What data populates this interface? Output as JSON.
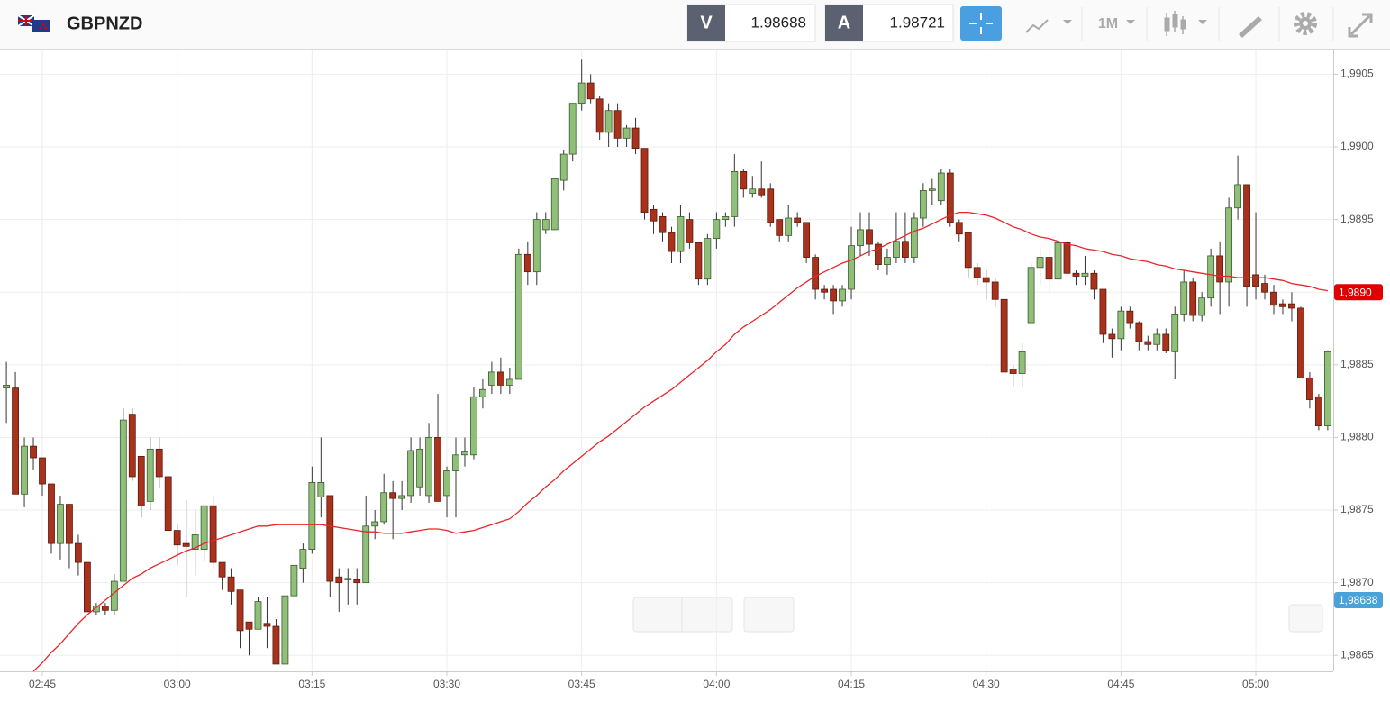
{
  "header": {
    "symbol": "GBPNZD",
    "bid_label": "V",
    "bid": "1.98688",
    "ask_label": "A",
    "ask": "1.98721",
    "timeframe": "1M"
  },
  "chart_data": {
    "type": "candlestick",
    "categories": [
      null,
      null,
      null,
      null,
      "02:45",
      null,
      null,
      null,
      null,
      null,
      null,
      null,
      null,
      null,
      null,
      null,
      null,
      null,
      null,
      "03:00",
      null,
      null,
      null,
      null,
      null,
      null,
      null,
      null,
      null,
      null,
      null,
      null,
      null,
      null,
      "03:15",
      null,
      null,
      null,
      null,
      null,
      null,
      null,
      null,
      null,
      null,
      null,
      null,
      null,
      null,
      "03:30",
      null,
      null,
      null,
      null,
      null,
      null,
      null,
      null,
      null,
      null,
      null,
      null,
      null,
      null,
      "03:45",
      null,
      null,
      null,
      null,
      null,
      null,
      null,
      null,
      null,
      null,
      null,
      null,
      null,
      null,
      "04:00",
      null,
      null,
      null,
      null,
      null,
      null,
      null,
      null,
      null,
      null,
      null,
      null,
      null,
      null,
      "04:15",
      null,
      null,
      null,
      null,
      null,
      null,
      null,
      null,
      null,
      null,
      null,
      null,
      null,
      null,
      "04:30",
      null,
      null,
      null,
      null,
      null,
      null,
      null,
      null,
      null,
      null,
      null,
      null,
      null,
      null,
      "04:45",
      null,
      null,
      null,
      null,
      null,
      null,
      null,
      null,
      null,
      null,
      null,
      null,
      null,
      null,
      "05:00",
      null,
      null,
      null,
      null,
      null,
      null,
      null,
      null
    ],
    "open": [
      1.98834,
      1.98834,
      1.98761,
      1.98794,
      1.98786,
      1.98768,
      1.98727,
      1.98754,
      1.98727,
      1.98714,
      1.9868,
      1.98684,
      1.98681,
      1.98701,
      1.98816,
      1.98787,
      1.98756,
      1.98792,
      1.98773,
      1.98736,
      1.98727,
      1.98723,
      1.98723,
      1.98753,
      1.98714,
      1.98704,
      1.98695,
      1.98673,
      1.98668,
      1.98672,
      1.9867,
      1.98644,
      1.98691,
      1.9871,
      1.98723,
      1.98759,
      1.9876,
      1.98704,
      1.98702,
      1.98702,
      1.987,
      1.98739,
      1.98742,
      1.98762,
      1.98758,
      1.9876,
      1.98766,
      1.9876,
      1.988,
      1.9876,
      1.98777,
      1.98788,
      1.98788,
      1.98828,
      1.98836,
      1.98845,
      1.98836,
      1.9884,
      1.98926,
      1.98914,
      1.98943,
      1.98943,
      1.98977,
      1.98995,
      1.9903,
      1.99044,
      1.99033,
      1.9901,
      1.99025,
      1.99006,
      1.99013,
      1.98999,
      1.98957,
      1.98952,
      1.98941,
      1.98928,
      1.9895,
      1.98934,
      1.98909,
      1.98937,
      1.9895,
      1.98952,
      1.98983,
      1.98968,
      1.98971,
      1.98971,
      1.9895,
      1.98939,
      1.98951,
      1.98948,
      1.98924,
      1.98902,
      1.98902,
      1.98894,
      1.98902,
      1.98932,
      1.98943,
      1.98933,
      1.98919,
      1.98924,
      1.98935,
      1.98924,
      1.98951,
      1.9897,
      1.98963,
      1.98982,
      1.98948,
      1.98941,
      1.98917,
      1.9891,
      1.98907,
      1.98895,
      1.98847,
      1.98844,
      1.98879,
      1.98917,
      1.98924,
      1.98909,
      1.98934,
      1.98913,
      1.98911,
      1.98913,
      1.98902,
      1.98871,
      1.98868,
      1.98887,
      1.98879,
      1.98866,
      1.98864,
      1.98871,
      1.98859,
      1.98885,
      1.98907,
      1.98884,
      1.98896,
      1.98925,
      1.98907,
      1.98958,
      1.98974,
      1.98912,
      1.98906,
      1.989,
      1.98892,
      1.98892,
      1.98889,
      1.98841,
      1.98828,
      1.98808
    ],
    "high": [
      1.98852,
      1.98845,
      1.988,
      1.988,
      1.98786,
      1.98768,
      1.9876,
      1.98754,
      1.98733,
      1.98714,
      1.98686,
      1.98686,
      1.98706,
      1.9882,
      1.9882,
      1.98787,
      1.988,
      1.988,
      1.98773,
      1.9874,
      1.98757,
      1.9875,
      1.98753,
      1.9876,
      1.98714,
      1.9871,
      1.98695,
      1.98673,
      1.9869,
      1.9869,
      1.98675,
      1.98691,
      1.98712,
      1.98727,
      1.9878,
      1.988,
      1.9876,
      1.9871,
      1.9871,
      1.9871,
      1.9876,
      1.9875,
      1.98775,
      1.9877,
      1.9877,
      1.988,
      1.988,
      1.9881,
      1.9883,
      1.9878,
      1.988,
      1.988,
      1.98835,
      1.9884,
      1.98852,
      1.98855,
      1.98848,
      1.9893,
      1.98935,
      1.98955,
      1.98955,
      1.98978,
      1.98998,
      1.9903,
      1.9906,
      1.9905,
      1.99035,
      1.9903,
      1.9903,
      1.99015,
      1.9902,
      1.98999,
      1.9896,
      1.98955,
      1.98945,
      1.9896,
      1.98955,
      1.98934,
      1.9894,
      1.98955,
      1.98955,
      1.98995,
      1.98985,
      1.9898,
      1.9899,
      1.98975,
      1.9895,
      1.9896,
      1.98955,
      1.98948,
      1.98926,
      1.98905,
      1.98905,
      1.98905,
      1.98945,
      1.98955,
      1.98955,
      1.98935,
      1.9893,
      1.98955,
      1.98955,
      1.98955,
      1.98975,
      1.98978,
      1.98985,
      1.98985,
      1.9895,
      1.98941,
      1.9892,
      1.98915,
      1.9891,
      1.98895,
      1.9885,
      1.98865,
      1.9892,
      1.9893,
      1.9893,
      1.9894,
      1.98945,
      1.98915,
      1.98925,
      1.98915,
      1.98902,
      1.98875,
      1.9889,
      1.9889,
      1.9888,
      1.9887,
      1.98875,
      1.98875,
      1.9889,
      1.98915,
      1.9891,
      1.989,
      1.9893,
      1.98935,
      1.98965,
      1.98994,
      1.98974,
      1.98955,
      1.98912,
      1.98905,
      1.98895,
      1.989,
      1.9889,
      1.98845,
      1.9883,
      1.9886
    ],
    "low": [
      1.9881,
      1.98761,
      1.98752,
      1.98778,
      1.9876,
      1.9872,
      1.98716,
      1.9871,
      1.98705,
      1.9868,
      1.98678,
      1.98678,
      1.98678,
      1.98701,
      1.9877,
      1.98745,
      1.9875,
      1.98765,
      1.98736,
      1.98712,
      1.9869,
      1.98705,
      1.98715,
      1.9871,
      1.98695,
      1.98685,
      1.98655,
      1.9865,
      1.98668,
      1.98655,
      1.98644,
      1.98644,
      1.98691,
      1.987,
      1.9872,
      1.98745,
      1.9869,
      1.9868,
      1.98685,
      1.98685,
      1.987,
      1.9873,
      1.9874,
      1.9873,
      1.9875,
      1.98755,
      1.9876,
      1.98755,
      1.98756,
      1.98745,
      1.98745,
      1.9878,
      1.98785,
      1.9882,
      1.9883,
      1.9883,
      1.9883,
      1.9884,
      1.98905,
      1.98905,
      1.9894,
      1.98943,
      1.9897,
      1.9899,
      1.99025,
      1.9903,
      1.99005,
      1.99,
      1.99,
      1.99,
      1.98995,
      1.9895,
      1.9894,
      1.98935,
      1.9892,
      1.9892,
      1.9893,
      1.98905,
      1.98905,
      1.9893,
      1.98945,
      1.98945,
      1.98965,
      1.98965,
      1.98965,
      1.98945,
      1.98935,
      1.98935,
      1.98945,
      1.9892,
      1.98895,
      1.98895,
      1.98885,
      1.9889,
      1.98895,
      1.98925,
      1.98925,
      1.98915,
      1.98912,
      1.9892,
      1.9892,
      1.9892,
      1.98945,
      1.9896,
      1.9896,
      1.98945,
      1.98935,
      1.9891,
      1.98905,
      1.98895,
      1.9889,
      1.98845,
      1.98835,
      1.98835,
      1.98879,
      1.98905,
      1.989,
      1.98905,
      1.9891,
      1.98905,
      1.98905,
      1.98895,
      1.98865,
      1.98855,
      1.9886,
      1.98875,
      1.9886,
      1.9886,
      1.9886,
      1.98858,
      1.9884,
      1.9888,
      1.9888,
      1.9888,
      1.9889,
      1.98885,
      1.9889,
      1.9895,
      1.9889,
      1.98895,
      1.98895,
      1.98885,
      1.98885,
      1.9888,
      1.98841,
      1.9882,
      1.98805,
      1.98805
    ],
    "close": [
      1.98836,
      1.98761,
      1.98794,
      1.98786,
      1.98768,
      1.98727,
      1.98754,
      1.98727,
      1.98714,
      1.9868,
      1.98684,
      1.98681,
      1.98701,
      1.98812,
      1.98773,
      1.98753,
      1.98792,
      1.98773,
      1.98736,
      1.98726,
      1.98725,
      1.98733,
      1.98753,
      1.98714,
      1.98704,
      1.98694,
      1.98667,
      1.98668,
      1.98687,
      1.9867,
      1.98644,
      1.98691,
      1.98712,
      1.98723,
      1.98769,
      1.98769,
      1.98701,
      1.987,
      1.98703,
      1.987,
      1.98739,
      1.98742,
      1.98762,
      1.98758,
      1.9876,
      1.98791,
      1.98792,
      1.988,
      1.98756,
      1.98777,
      1.98788,
      1.9879,
      1.98828,
      1.98833,
      1.98845,
      1.98836,
      1.9884,
      1.98926,
      1.98914,
      1.9895,
      1.9895,
      1.98978,
      1.98995,
      1.9903,
      1.99044,
      1.99033,
      1.9901,
      1.99025,
      1.99006,
      1.99013,
      1.98999,
      1.98955,
      1.98949,
      1.98941,
      1.98928,
      1.98952,
      1.98934,
      1.98909,
      1.98937,
      1.9895,
      1.98952,
      1.98983,
      1.98971,
      1.98971,
      1.98967,
      1.98948,
      1.98939,
      1.98951,
      1.98948,
      1.98924,
      1.98902,
      1.989,
      1.98894,
      1.98902,
      1.98932,
      1.98943,
      1.98933,
      1.98919,
      1.98924,
      1.98935,
      1.98924,
      1.98951,
      1.9897,
      1.98971,
      1.98982,
      1.98948,
      1.9894,
      1.98917,
      1.9891,
      1.98907,
      1.98895,
      1.98845,
      1.98844,
      1.98859,
      1.98917,
      1.98924,
      1.98909,
      1.98934,
      1.98913,
      1.98911,
      1.98913,
      1.98902,
      1.98871,
      1.98868,
      1.98887,
      1.98879,
      1.98866,
      1.98864,
      1.98871,
      1.9886,
      1.98885,
      1.98907,
      1.98884,
      1.98896,
      1.98925,
      1.98907,
      1.98958,
      1.98974,
      1.98904,
      1.98904,
      1.989,
      1.98891,
      1.9889,
      1.98889,
      1.98841,
      1.98826,
      1.98808,
      1.98859
    ],
    "up_color": "#8fbf78",
    "down_color": "#a8321c",
    "ma": {
      "color": "#e8262a",
      "values": [
        null,
        null,
        null,
        1.98639,
        1.98645,
        1.98652,
        1.98658,
        1.98665,
        1.98672,
        1.98678,
        1.98683,
        1.98688,
        1.98693,
        1.98698,
        1.98703,
        1.98706,
        1.9871,
        1.98713,
        1.98716,
        1.98719,
        1.98722,
        1.98724,
        1.98727,
        1.98729,
        1.98731,
        1.98733,
        1.98735,
        1.98737,
        1.98739,
        1.98739,
        1.9874,
        1.9874,
        1.9874,
        1.9874,
        1.9874,
        1.9874,
        1.98739,
        1.98738,
        1.98737,
        1.98736,
        1.98735,
        1.98735,
        1.98734,
        1.98734,
        1.98734,
        1.98735,
        1.98736,
        1.98737,
        1.98737,
        1.98736,
        1.98734,
        1.98735,
        1.98736,
        1.98738,
        1.9874,
        1.98742,
        1.98744,
        1.98749,
        1.98755,
        1.9876,
        1.98766,
        1.98771,
        1.98777,
        1.98782,
        1.98787,
        1.98792,
        1.98797,
        1.98801,
        1.98806,
        1.98811,
        1.98816,
        1.98821,
        1.98825,
        1.98829,
        1.98833,
        1.98838,
        1.98843,
        1.98848,
        1.98853,
        1.98859,
        1.98864,
        1.98871,
        1.98876,
        1.9888,
        1.98884,
        1.98888,
        1.98893,
        1.98898,
        1.98903,
        1.98907,
        1.98911,
        1.98914,
        1.98917,
        1.9892,
        1.98922,
        1.98925,
        1.98928,
        1.9893,
        1.98933,
        1.98936,
        1.98939,
        1.98942,
        1.98944,
        1.98947,
        1.9895,
        1.98953,
        1.98955,
        1.98955,
        1.98954,
        1.98953,
        1.98951,
        1.98948,
        1.98945,
        1.98943,
        1.9894,
        1.98938,
        1.98937,
        1.98935,
        1.98933,
        1.98932,
        1.9893,
        1.98929,
        1.98928,
        1.98926,
        1.98925,
        1.98923,
        1.98922,
        1.98921,
        1.98919,
        1.98918,
        1.98916,
        1.98915,
        1.98914,
        1.98913,
        1.98912,
        1.98911,
        1.98911,
        1.9891,
        1.9891,
        1.9891,
        1.9891,
        1.98909,
        1.98908,
        1.98906,
        1.98905,
        1.98904,
        1.98902,
        1.98901
      ]
    },
    "price_tags": [
      {
        "value": 1.989,
        "label": "1,9890",
        "color": "#e00000"
      },
      {
        "value": 1.98688,
        "label": "1,98688",
        "color": "#4aa3d8"
      }
    ],
    "ylim": [
      1.98639,
      1.99067
    ],
    "yticks": [
      {
        "value": 1.9865,
        "label": "1,9865"
      },
      {
        "value": 1.987,
        "label": "1,9870"
      },
      {
        "value": 1.9875,
        "label": "1,9875"
      },
      {
        "value": 1.988,
        "label": "1,9880"
      },
      {
        "value": 1.9885,
        "label": "1,9885"
      },
      {
        "value": 1.989,
        "label": "1,9890"
      },
      {
        "value": 1.9895,
        "label": "1,9895"
      },
      {
        "value": 1.99,
        "label": "1,9900"
      },
      {
        "value": 1.9905,
        "label": "1,9905"
      }
    ],
    "grid": true
  }
}
